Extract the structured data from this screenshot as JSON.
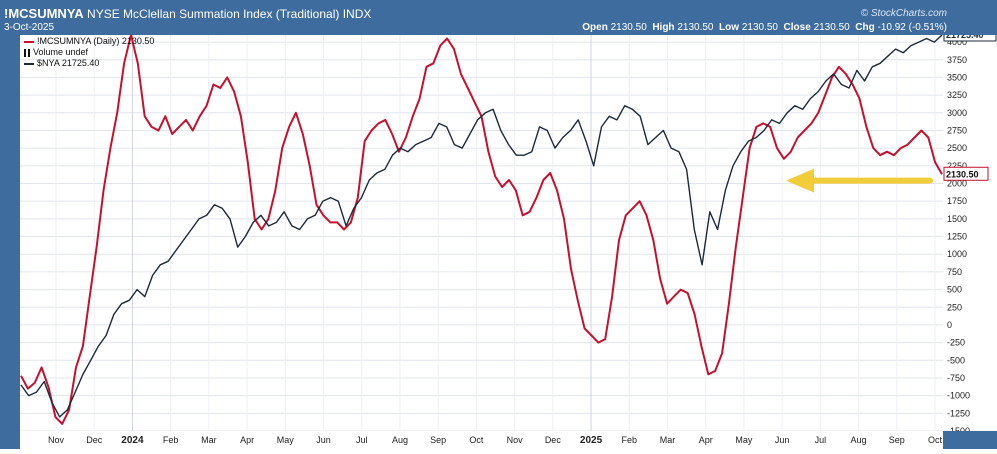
{
  "header": {
    "symbol": "!MCSUMNYA",
    "description": "NYSE McClellan Summation Index (Traditional)",
    "exchange": "INDX",
    "date": "3-Oct-2025",
    "brand": "© StockCharts.com",
    "open_label": "Open",
    "open": "2130.50",
    "high_label": "High",
    "high": "2130.50",
    "low_label": "Low",
    "low": "2130.50",
    "close_label": "Close",
    "close": "2130.50",
    "chg_label": "Chg",
    "chg": "-10.92 (-0.51%)"
  },
  "legend": [
    {
      "text": "!MCSUMNYA (Daily) 2130.50",
      "color": "#c8102e",
      "icon": "line-swatch"
    },
    {
      "text": "Volume undef",
      "color": "#111111",
      "icon": "volume-bars-icon"
    },
    {
      "text": "$NYA 21725.40",
      "color": "#1b2a3a",
      "icon": "line-swatch"
    }
  ],
  "chart_data": {
    "type": "line",
    "x_ticks": [
      "Nov",
      "Dec",
      "2024",
      "Feb",
      "Mar",
      "Apr",
      "May",
      "Jun",
      "Jul",
      "Aug",
      "Sep",
      "Oct",
      "Nov",
      "Dec",
      "2025",
      "Feb",
      "Mar",
      "Apr",
      "May",
      "Jun",
      "Jul",
      "Aug",
      "Sep",
      "Oct"
    ],
    "y_ticks": [
      "4000",
      "3750",
      "3500",
      "3250",
      "3000",
      "2750",
      "2500",
      "2250",
      "2000",
      "1750",
      "1500",
      "1250",
      "1000",
      "750",
      "500",
      "250",
      "0",
      "-250",
      "-500",
      "-750",
      "-1000",
      "-1250",
      "-1500"
    ],
    "ylim": [
      -1500,
      4100
    ],
    "last_value_labels": {
      "nya": "21725.40",
      "mcsum": "2130.50"
    },
    "annotation": "yellow arrow pointing left to last value",
    "series": [
      {
        "name": "!MCSUMNYA",
        "color": "#c8102e",
        "values": [
          -720,
          -900,
          -820,
          -600,
          -880,
          -1300,
          -1400,
          -1200,
          -600,
          -300,
          400,
          1100,
          1900,
          2500,
          3000,
          3700,
          4100,
          3700,
          2950,
          2800,
          2750,
          2950,
          2700,
          2800,
          2900,
          2750,
          2950,
          3100,
          3400,
          3350,
          3500,
          3300,
          2950,
          2300,
          1500,
          1350,
          1500,
          1900,
          2500,
          2800,
          3000,
          2700,
          2250,
          1700,
          1550,
          1450,
          1450,
          1350,
          1450,
          1800,
          2600,
          2750,
          2850,
          2900,
          2700,
          2450,
          2650,
          2950,
          3200,
          3650,
          3700,
          3950,
          4050,
          3900,
          3550,
          3350,
          3150,
          2950,
          2450,
          2100,
          1950,
          2050,
          1900,
          1550,
          1600,
          1800,
          2050,
          2150,
          1900,
          1500,
          800,
          350,
          -50,
          -150,
          -250,
          -200,
          400,
          1200,
          1550,
          1650,
          1750,
          1550,
          1200,
          650,
          300,
          400,
          500,
          450,
          150,
          -300,
          -700,
          -650,
          -400,
          300,
          1100,
          1800,
          2500,
          2800,
          2850,
          2800,
          2500,
          2350,
          2450,
          2650,
          2750,
          2850,
          3000,
          3250,
          3500,
          3650,
          3550,
          3400,
          3200,
          2800,
          2500,
          2400,
          2450,
          2400,
          2500,
          2550,
          2650,
          2750,
          2650,
          2300,
          2130.5
        ]
      },
      {
        "name": "$NYA",
        "color": "#1b2a3a",
        "values": [
          -850,
          -1000,
          -950,
          -800,
          -1100,
          -1300,
          -1200,
          -950,
          -700,
          -500,
          -300,
          -150,
          150,
          300,
          350,
          500,
          400,
          700,
          850,
          900,
          1050,
          1200,
          1350,
          1500,
          1550,
          1700,
          1650,
          1500,
          1100,
          1250,
          1450,
          1550,
          1400,
          1450,
          1600,
          1400,
          1350,
          1500,
          1550,
          1750,
          1800,
          1750,
          1400,
          1650,
          1800,
          2050,
          2150,
          2200,
          2400,
          2500,
          2450,
          2550,
          2600,
          2650,
          2850,
          2800,
          2550,
          2500,
          2700,
          2900,
          3000,
          3050,
          2750,
          2550,
          2400,
          2400,
          2450,
          2800,
          2750,
          2500,
          2650,
          2750,
          2900,
          2600,
          2250,
          2800,
          2950,
          2900,
          3100,
          3050,
          2950,
          2550,
          2650,
          2750,
          2500,
          2450,
          2200,
          1350,
          850,
          1600,
          1350,
          1900,
          2250,
          2450,
          2600,
          2650,
          2750,
          2900,
          2850,
          3000,
          3100,
          3050,
          3200,
          3300,
          3450,
          3550,
          3400,
          3350,
          3600,
          3450,
          3650,
          3700,
          3800,
          3900,
          3850,
          3950,
          4000,
          4050,
          4000,
          4100
        ]
      }
    ]
  }
}
